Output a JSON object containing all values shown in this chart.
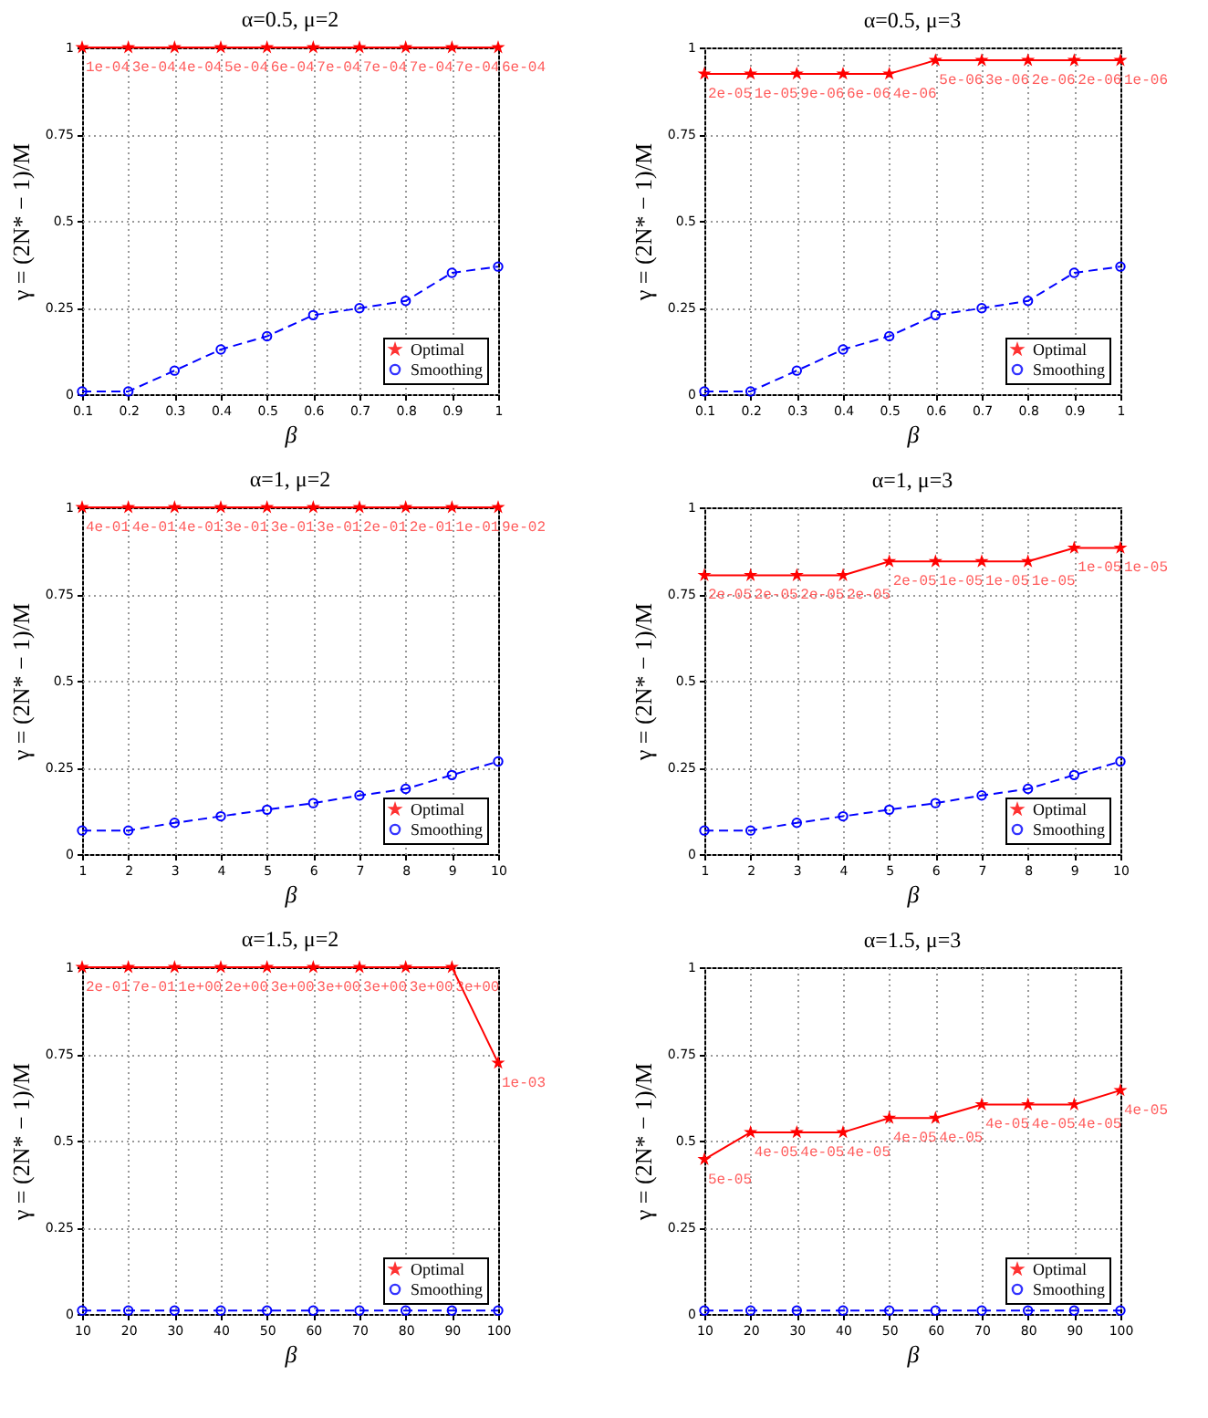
{
  "chart_data": [
    {
      "type": "line",
      "title": "α=0.5, μ=2",
      "xlabel": "β",
      "ylabel": "γ = (2N* − 1)/M",
      "x": [
        0.1,
        0.2,
        0.3,
        0.4,
        0.5,
        0.6,
        0.7,
        0.8,
        0.9,
        1
      ],
      "xlim": [
        0.1,
        1
      ],
      "xticks": [
        0.1,
        0.2,
        0.3,
        0.4,
        0.5,
        0.6,
        0.7,
        0.8,
        0.9,
        1
      ],
      "ylim": [
        0,
        1
      ],
      "yticks": [
        0,
        0.25,
        0.5,
        0.75,
        1
      ],
      "grid": true,
      "legend": "bottom right",
      "series": [
        {
          "name": "Optimal",
          "color": "#ff0000",
          "marker": "star",
          "line_style": "solid",
          "values": [
            1,
            1,
            1,
            1,
            1,
            1,
            1,
            1,
            1,
            1
          ]
        },
        {
          "name": "Smoothing",
          "color": "#0000ff",
          "marker": "circle",
          "line_style": "dashed",
          "values": [
            0.008,
            0.008,
            0.068,
            0.129,
            0.167,
            0.228,
            0.248,
            0.269,
            0.35,
            0.368
          ]
        }
      ],
      "annotations": [
        {
          "text": "1e-04",
          "x": 0.1,
          "y": 1
        },
        {
          "text": "3e-04",
          "x": 0.2,
          "y": 1
        },
        {
          "text": "4e-04",
          "x": 0.3,
          "y": 1
        },
        {
          "text": "5e-04",
          "x": 0.4,
          "y": 1
        },
        {
          "text": "6e-04",
          "x": 0.5,
          "y": 1
        },
        {
          "text": "7e-04",
          "x": 0.6,
          "y": 1
        },
        {
          "text": "7e-04",
          "x": 0.7,
          "y": 1
        },
        {
          "text": "7e-04",
          "x": 0.8,
          "y": 1
        },
        {
          "text": "7e-04",
          "x": 0.9,
          "y": 1
        },
        {
          "text": "6e-04",
          "x": 1,
          "y": 1
        }
      ]
    },
    {
      "type": "line",
      "title": "α=0.5, μ=3",
      "xlabel": "β",
      "ylabel": "γ = (2N* − 1)/M",
      "x": [
        0.1,
        0.2,
        0.3,
        0.4,
        0.5,
        0.6,
        0.7,
        0.8,
        0.9,
        1
      ],
      "xlim": [
        0.1,
        1
      ],
      "xticks": [
        0.1,
        0.2,
        0.3,
        0.4,
        0.5,
        0.6,
        0.7,
        0.8,
        0.9,
        1
      ],
      "ylim": [
        0,
        1
      ],
      "yticks": [
        0,
        0.25,
        0.5,
        0.75,
        1
      ],
      "grid": true,
      "legend": "bottom right",
      "series": [
        {
          "name": "Optimal",
          "color": "#ff0000",
          "marker": "star",
          "line_style": "solid",
          "values": [
            0.924,
            0.924,
            0.924,
            0.924,
            0.924,
            0.963,
            0.963,
            0.963,
            0.963,
            0.963
          ]
        },
        {
          "name": "Smoothing",
          "color": "#0000ff",
          "marker": "circle",
          "line_style": "dashed",
          "values": [
            0.008,
            0.008,
            0.068,
            0.129,
            0.167,
            0.228,
            0.248,
            0.269,
            0.35,
            0.368
          ]
        }
      ],
      "annotations": [
        {
          "text": "2e-05",
          "x": 0.1,
          "y": 0.924
        },
        {
          "text": "1e-05",
          "x": 0.2,
          "y": 0.924
        },
        {
          "text": "9e-06",
          "x": 0.3,
          "y": 0.924
        },
        {
          "text": "6e-06",
          "x": 0.4,
          "y": 0.924
        },
        {
          "text": "4e-06",
          "x": 0.5,
          "y": 0.924
        },
        {
          "text": "5e-06",
          "x": 0.6,
          "y": 0.963
        },
        {
          "text": "3e-06",
          "x": 0.7,
          "y": 0.963
        },
        {
          "text": "2e-06",
          "x": 0.8,
          "y": 0.963
        },
        {
          "text": "2e-06",
          "x": 0.9,
          "y": 0.963
        },
        {
          "text": "1e-06",
          "x": 1,
          "y": 0.963
        }
      ]
    },
    {
      "type": "line",
      "title": "α=1, μ=2",
      "xlabel": "β",
      "ylabel": "γ = (2N* − 1)/M",
      "x": [
        1,
        2,
        3,
        4,
        5,
        6,
        7,
        8,
        9,
        10
      ],
      "xlim": [
        1,
        10
      ],
      "xticks": [
        1,
        2,
        3,
        4,
        5,
        6,
        7,
        8,
        9,
        10
      ],
      "ylim": [
        0,
        1
      ],
      "yticks": [
        0,
        0.25,
        0.5,
        0.75,
        1
      ],
      "grid": true,
      "legend": "bottom right",
      "series": [
        {
          "name": "Optimal",
          "color": "#ff0000",
          "marker": "star",
          "line_style": "solid",
          "values": [
            1,
            1,
            1,
            1,
            1,
            1,
            1,
            1,
            1,
            1
          ]
        },
        {
          "name": "Smoothing",
          "color": "#0000ff",
          "marker": "circle",
          "line_style": "dashed",
          "values": [
            0.068,
            0.068,
            0.09,
            0.109,
            0.128,
            0.147,
            0.169,
            0.188,
            0.228,
            0.267
          ]
        }
      ],
      "annotations": [
        {
          "text": "4e-01",
          "x": 1,
          "y": 1
        },
        {
          "text": "4e-01",
          "x": 2,
          "y": 1
        },
        {
          "text": "4e-01",
          "x": 3,
          "y": 1
        },
        {
          "text": "3e-01",
          "x": 4,
          "y": 1
        },
        {
          "text": "3e-01",
          "x": 5,
          "y": 1
        },
        {
          "text": "3e-01",
          "x": 6,
          "y": 1
        },
        {
          "text": "2e-01",
          "x": 7,
          "y": 1
        },
        {
          "text": "2e-01",
          "x": 8,
          "y": 1
        },
        {
          "text": "1e-01",
          "x": 9,
          "y": 1
        },
        {
          "text": "9e-02",
          "x": 10,
          "y": 1
        }
      ]
    },
    {
      "type": "line",
      "title": "α=1, μ=3",
      "xlabel": "β",
      "ylabel": "γ = (2N* − 1)/M",
      "x": [
        1,
        2,
        3,
        4,
        5,
        6,
        7,
        8,
        9,
        10
      ],
      "xlim": [
        1,
        10
      ],
      "xticks": [
        1,
        2,
        3,
        4,
        5,
        6,
        7,
        8,
        9,
        10
      ],
      "ylim": [
        0,
        1
      ],
      "yticks": [
        0,
        0.25,
        0.5,
        0.75,
        1
      ],
      "grid": true,
      "legend": "bottom right",
      "series": [
        {
          "name": "Optimal",
          "color": "#ff0000",
          "marker": "star",
          "line_style": "solid",
          "values": [
            0.804,
            0.804,
            0.804,
            0.804,
            0.844,
            0.844,
            0.844,
            0.844,
            0.883,
            0.883
          ]
        },
        {
          "name": "Smoothing",
          "color": "#0000ff",
          "marker": "circle",
          "line_style": "dashed",
          "values": [
            0.068,
            0.068,
            0.09,
            0.109,
            0.128,
            0.147,
            0.169,
            0.188,
            0.228,
            0.267
          ]
        }
      ],
      "annotations": [
        {
          "text": "2e-05",
          "x": 1,
          "y": 0.804
        },
        {
          "text": "2e-05",
          "x": 2,
          "y": 0.804
        },
        {
          "text": "2e-05",
          "x": 3,
          "y": 0.804
        },
        {
          "text": "2e-05",
          "x": 4,
          "y": 0.804
        },
        {
          "text": "2e-05",
          "x": 5,
          "y": 0.844
        },
        {
          "text": "1e-05",
          "x": 6,
          "y": 0.844
        },
        {
          "text": "1e-05",
          "x": 7,
          "y": 0.844
        },
        {
          "text": "1e-05",
          "x": 8,
          "y": 0.844
        },
        {
          "text": "1e-05",
          "x": 9,
          "y": 0.883
        },
        {
          "text": "1e-05",
          "x": 10,
          "y": 0.883
        }
      ]
    },
    {
      "type": "line",
      "title": "α=1.5, μ=2",
      "xlabel": "β",
      "ylabel": "γ = (2N* − 1)/M",
      "x": [
        10,
        20,
        30,
        40,
        50,
        60,
        70,
        80,
        90,
        100
      ],
      "xlim": [
        10,
        100
      ],
      "xticks": [
        10,
        20,
        30,
        40,
        50,
        60,
        70,
        80,
        90,
        100
      ],
      "ylim": [
        0,
        1
      ],
      "yticks": [
        0,
        0.25,
        0.5,
        0.75,
        1
      ],
      "grid": true,
      "legend": "bottom right",
      "series": [
        {
          "name": "Optimal",
          "color": "#ff0000",
          "marker": "star",
          "line_style": "solid",
          "values": [
            1,
            1,
            1,
            1,
            1,
            1,
            1,
            1,
            1,
            0.724
          ]
        },
        {
          "name": "Smoothing",
          "color": "#0000ff",
          "marker": "circle",
          "line_style": "dashed",
          "values": [
            0.01,
            0.01,
            0.01,
            0.01,
            0.01,
            0.01,
            0.01,
            0.01,
            0.01,
            0.01
          ]
        }
      ],
      "annotations": [
        {
          "text": "2e-01",
          "x": 10,
          "y": 1
        },
        {
          "text": "7e-01",
          "x": 20,
          "y": 1
        },
        {
          "text": "1e+00",
          "x": 30,
          "y": 1
        },
        {
          "text": "2e+00",
          "x": 40,
          "y": 1
        },
        {
          "text": "3e+00",
          "x": 50,
          "y": 1
        },
        {
          "text": "3e+00",
          "x": 60,
          "y": 1
        },
        {
          "text": "3e+00",
          "x": 70,
          "y": 1
        },
        {
          "text": "3e+00",
          "x": 80,
          "y": 1
        },
        {
          "text": "3e+00",
          "x": 90,
          "y": 1
        },
        {
          "text": "1e-03",
          "x": 100,
          "y": 0.724
        }
      ]
    },
    {
      "type": "line",
      "title": "α=1.5, μ=3",
      "xlabel": "β",
      "ylabel": "γ = (2N* − 1)/M",
      "x": [
        10,
        20,
        30,
        40,
        50,
        60,
        70,
        80,
        90,
        100
      ],
      "xlim": [
        10,
        100
      ],
      "xticks": [
        10,
        20,
        30,
        40,
        50,
        60,
        70,
        80,
        90,
        100
      ],
      "ylim": [
        0,
        1
      ],
      "yticks": [
        0,
        0.25,
        0.5,
        0.75,
        1
      ],
      "grid": true,
      "legend": "bottom right",
      "series": [
        {
          "name": "Optimal",
          "color": "#ff0000",
          "marker": "star",
          "line_style": "solid",
          "values": [
            0.446,
            0.524,
            0.524,
            0.524,
            0.565,
            0.565,
            0.604,
            0.604,
            0.604,
            0.645
          ]
        },
        {
          "name": "Smoothing",
          "color": "#0000ff",
          "marker": "circle",
          "line_style": "dashed",
          "values": [
            0.01,
            0.01,
            0.01,
            0.01,
            0.01,
            0.01,
            0.01,
            0.01,
            0.01,
            0.01
          ]
        }
      ],
      "annotations": [
        {
          "text": "5e-05",
          "x": 10,
          "y": 0.446
        },
        {
          "text": "4e-05",
          "x": 20,
          "y": 0.524
        },
        {
          "text": "4e-05",
          "x": 30,
          "y": 0.524
        },
        {
          "text": "4e-05",
          "x": 40,
          "y": 0.524
        },
        {
          "text": "4e-05",
          "x": 50,
          "y": 0.565
        },
        {
          "text": "4e-05",
          "x": 60,
          "y": 0.565
        },
        {
          "text": "4e-05",
          "x": 70,
          "y": 0.604
        },
        {
          "text": "4e-05",
          "x": 80,
          "y": 0.604
        },
        {
          "text": "4e-05",
          "x": 90,
          "y": 0.604
        },
        {
          "text": "4e-05",
          "x": 100,
          "y": 0.645
        }
      ]
    }
  ]
}
